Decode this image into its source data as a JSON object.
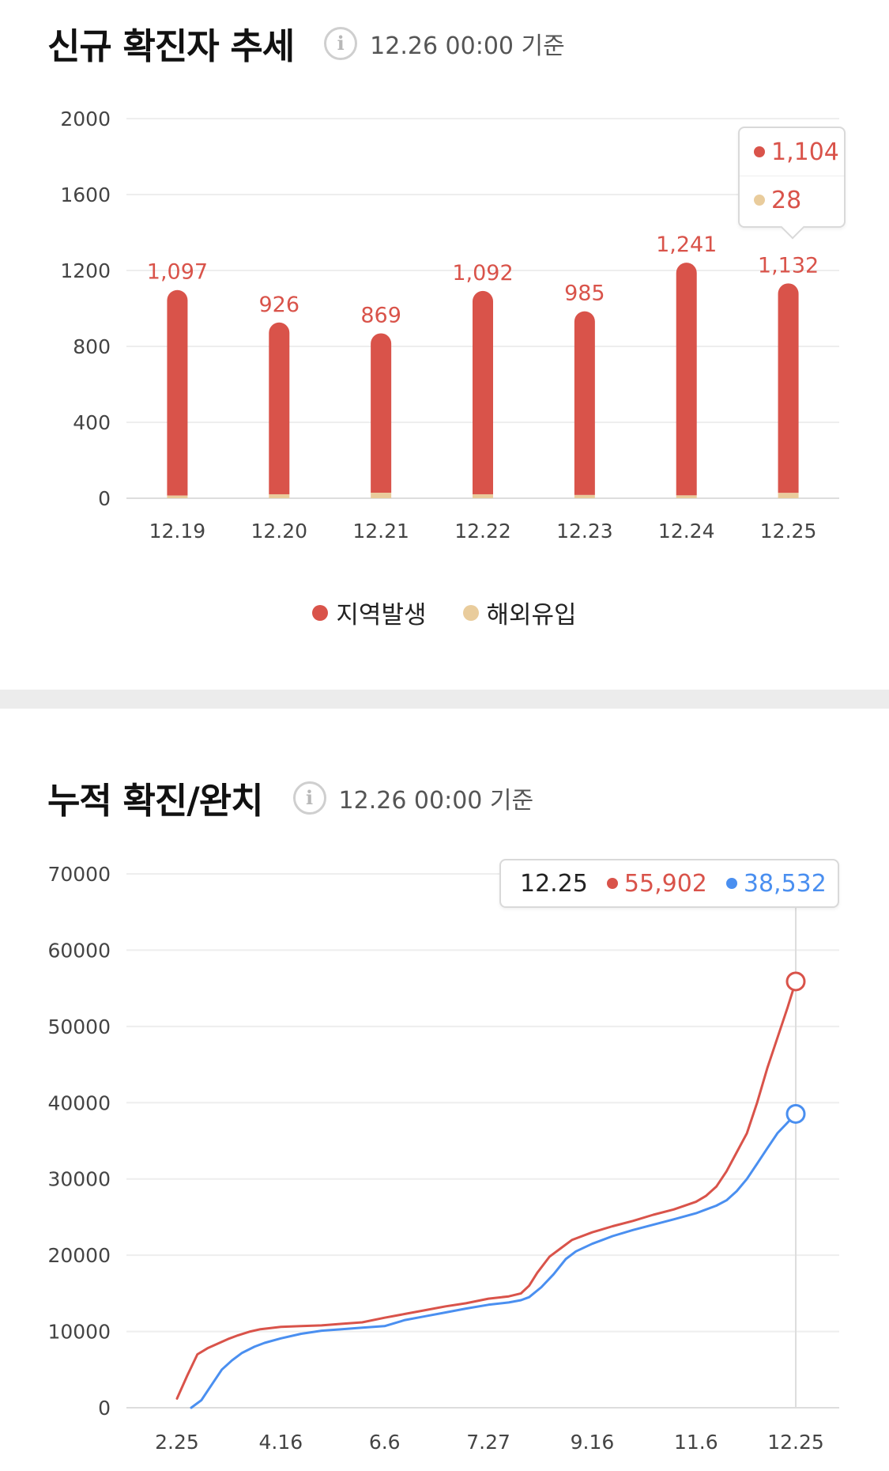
{
  "new_cases": {
    "title": "신규 확진자 추세",
    "info_icon": "info-icon",
    "basis": "12.26 00:00 기준",
    "legend": [
      {
        "label": "지역발생",
        "color": "#d9534a"
      },
      {
        "label": "해외유입",
        "color": "#e9cc9c"
      }
    ],
    "tooltip": {
      "local": "1,104",
      "imported": "28"
    }
  },
  "cumulative": {
    "title": "누적 확진/완치",
    "info_icon": "info-icon",
    "basis": "12.26 00:00 기준",
    "tooltip": {
      "date": "12.25",
      "confirmed": "55,902",
      "recovered": "38,532"
    }
  },
  "colors": {
    "confirmed": "#d9534a",
    "recovered": "#4a8ff0",
    "imported": "#e9cc9c",
    "grid": "#eeeeee"
  },
  "chart_data": [
    {
      "type": "bar",
      "stacked": true,
      "categories": [
        "12.19",
        "12.20",
        "12.21",
        "12.22",
        "12.23",
        "12.24",
        "12.25"
      ],
      "series": [
        {
          "name": "지역발생",
          "values": [
            1083,
            905,
            840,
            1071,
            968,
            1226,
            1104
          ]
        },
        {
          "name": "해외유입",
          "values": [
            14,
            21,
            29,
            21,
            17,
            15,
            28
          ]
        }
      ],
      "totals_labels": [
        "1,097",
        "926",
        "869",
        "1,092",
        "985",
        "1,241",
        "1,132"
      ],
      "ylim": [
        0,
        2000
      ],
      "yticks": [
        0,
        400,
        800,
        1200,
        1600,
        2000
      ],
      "legend": "bottom-center",
      "grid": true
    },
    {
      "type": "line",
      "xticks": [
        "2.25",
        "4.16",
        "6.6",
        "7.27",
        "9.16",
        "11.6",
        "12.25"
      ],
      "ylim": [
        0,
        70000
      ],
      "yticks": [
        0,
        10000,
        20000,
        30000,
        40000,
        50000,
        60000,
        70000
      ],
      "grid": true,
      "series": [
        {
          "name": "확진",
          "x": [
            "2.25",
            "3.1",
            "3.6",
            "3.11",
            "3.16",
            "3.21",
            "3.26",
            "4.1",
            "4.6",
            "4.16",
            "4.26",
            "5.6",
            "5.16",
            "5.26",
            "6.6",
            "6.16",
            "6.26",
            "7.6",
            "7.16",
            "7.27",
            "8.6",
            "8.12",
            "8.16",
            "8.20",
            "8.26",
            "9.1",
            "9.6",
            "9.16",
            "9.26",
            "10.6",
            "10.16",
            "10.26",
            "11.6",
            "11.11",
            "11.16",
            "11.21",
            "11.26",
            "12.1",
            "12.6",
            "12.11",
            "12.16",
            "12.21",
            "12.25"
          ],
          "values": [
            1200,
            4200,
            7000,
            7800,
            8400,
            9000,
            9500,
            10000,
            10300,
            10600,
            10700,
            10800,
            11000,
            11200,
            11800,
            12300,
            12800,
            13300,
            13700,
            14300,
            14600,
            15000,
            16000,
            17700,
            19800,
            21000,
            22000,
            23000,
            23800,
            24500,
            25300,
            26000,
            27000,
            27800,
            29000,
            31000,
            33500,
            36000,
            40000,
            44500,
            48500,
            52500,
            55902
          ]
        },
        {
          "name": "완치",
          "x": [
            "3.3",
            "3.8",
            "3.13",
            "3.18",
            "3.23",
            "3.28",
            "4.3",
            "4.8",
            "4.16",
            "4.26",
            "5.6",
            "5.16",
            "5.26",
            "6.6",
            "6.16",
            "6.26",
            "7.6",
            "7.16",
            "7.27",
            "8.6",
            "8.12",
            "8.16",
            "8.22",
            "8.28",
            "9.3",
            "9.8",
            "9.16",
            "9.26",
            "10.6",
            "10.16",
            "10.26",
            "11.6",
            "11.16",
            "11.21",
            "11.26",
            "12.1",
            "12.6",
            "12.11",
            "12.16",
            "12.21",
            "12.25"
          ],
          "values": [
            0,
            1000,
            3000,
            5000,
            6200,
            7200,
            8000,
            8500,
            9100,
            9700,
            10100,
            10300,
            10500,
            10700,
            11500,
            12000,
            12500,
            13000,
            13500,
            13800,
            14100,
            14500,
            15800,
            17500,
            19500,
            20500,
            21500,
            22500,
            23300,
            24000,
            24700,
            25500,
            26500,
            27200,
            28400,
            30000,
            32000,
            34000,
            36000,
            37400,
            38532
          ]
        }
      ],
      "highlight": {
        "x": "12.25",
        "confirmed": 55902,
        "recovered": 38532
      }
    }
  ]
}
